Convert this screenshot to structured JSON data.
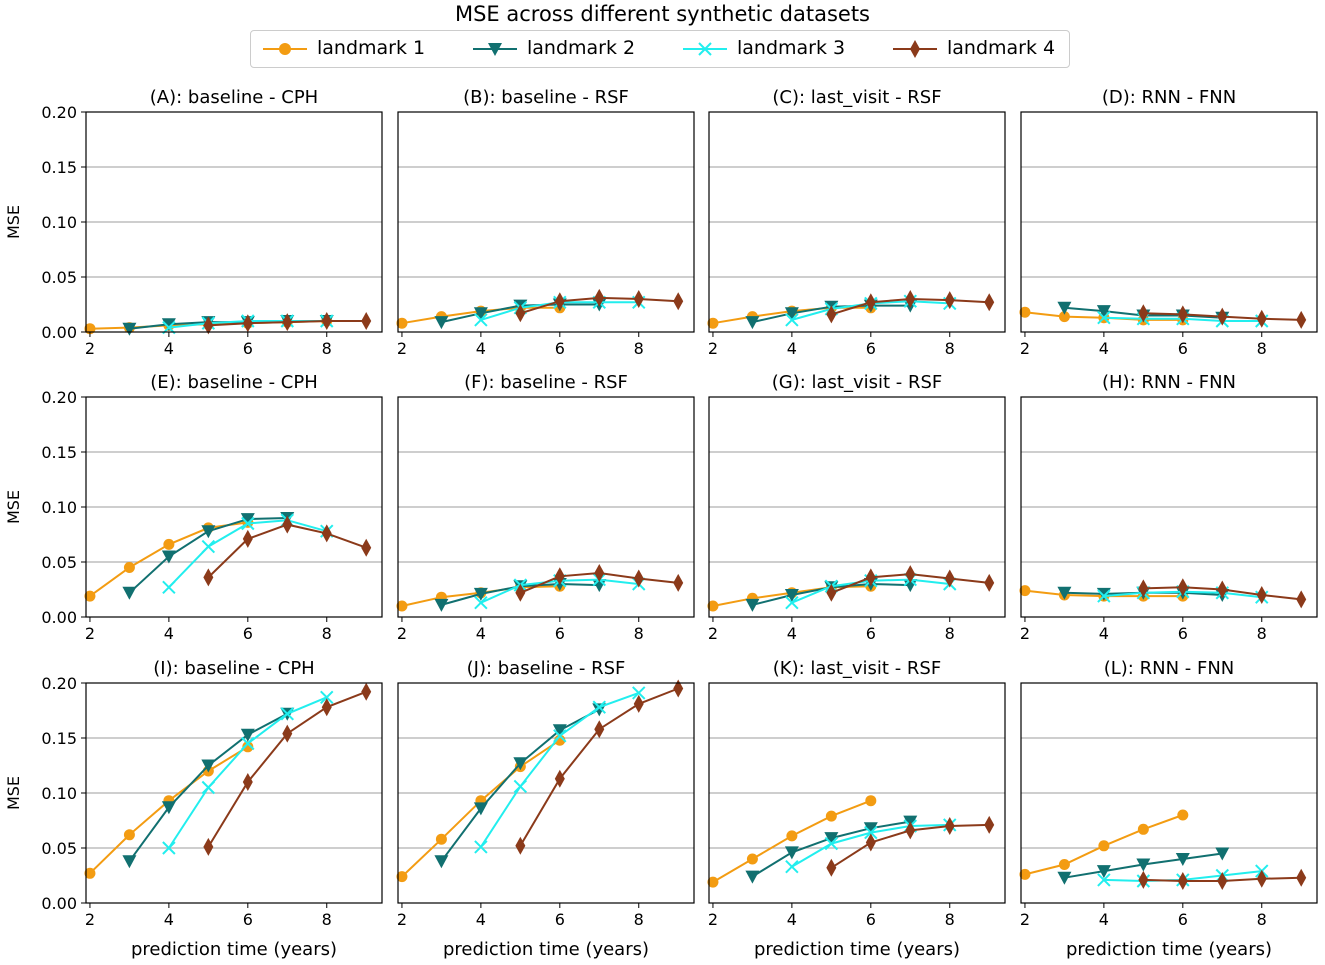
{
  "title": "MSE across different synthetic datasets",
  "legend": [
    {
      "label": "landmark 1",
      "color": "#f39c12",
      "marker": "circle"
    },
    {
      "label": "landmark 2",
      "color": "#117070",
      "marker": "triangle-down"
    },
    {
      "label": "landmark 3",
      "color": "#22eeee",
      "marker": "x"
    },
    {
      "label": "landmark 4",
      "color": "#8b3a1a",
      "marker": "diamond"
    }
  ],
  "chart_data": [
    {
      "type": "line",
      "title": "(A): baseline - CPH",
      "xlabel": "",
      "ylabel": "MSE",
      "xticks": [
        "2",
        "4",
        "6",
        "8"
      ],
      "yticks": [
        "0.00",
        "0.05",
        "0.10",
        "0.15",
        "0.20"
      ],
      "xlim": [
        1.9,
        9.4
      ],
      "ylim": [
        0,
        0.2
      ],
      "series": [
        {
          "name": "landmark 1",
          "x": [
            2,
            3,
            4,
            5,
            6,
            7,
            8
          ],
          "values": [
            0.003,
            0.004,
            0.006,
            0.007,
            0.008,
            0.009,
            0.01
          ]
        },
        {
          "name": "landmark 2",
          "x": [
            3,
            4,
            5,
            6,
            7,
            8
          ],
          "values": [
            0.003,
            0.007,
            0.009,
            0.009,
            0.01,
            0.01
          ]
        },
        {
          "name": "landmark 3",
          "x": [
            4,
            5,
            6,
            7,
            8
          ],
          "values": [
            0.004,
            0.008,
            0.01,
            0.01,
            0.01
          ]
        },
        {
          "name": "landmark 4",
          "x": [
            5,
            6,
            7,
            8,
            9
          ],
          "values": [
            0.006,
            0.008,
            0.009,
            0.01,
            0.01
          ]
        }
      ]
    },
    {
      "type": "line",
      "title": "(B): baseline - RSF",
      "xlabel": "",
      "ylabel": "",
      "xticks": [
        "2",
        "4",
        "6",
        "8"
      ],
      "yticks": [],
      "xlim": [
        1.9,
        9.4
      ],
      "ylim": [
        0,
        0.2
      ],
      "series": [
        {
          "name": "landmark 1",
          "x": [
            2,
            3,
            4,
            5,
            6
          ],
          "values": [
            0.008,
            0.014,
            0.019,
            0.022,
            0.022
          ]
        },
        {
          "name": "landmark 2",
          "x": [
            3,
            4,
            5,
            6,
            7
          ],
          "values": [
            0.009,
            0.017,
            0.024,
            0.025,
            0.025
          ]
        },
        {
          "name": "landmark 3",
          "x": [
            4,
            5,
            6,
            7,
            8
          ],
          "values": [
            0.011,
            0.022,
            0.027,
            0.027,
            0.027
          ]
        },
        {
          "name": "landmark 4",
          "x": [
            5,
            6,
            7,
            8,
            9
          ],
          "values": [
            0.017,
            0.028,
            0.031,
            0.03,
            0.028
          ]
        }
      ]
    },
    {
      "type": "line",
      "title": "(C): last_visit - RSF",
      "xlabel": "",
      "ylabel": "",
      "xticks": [
        "2",
        "4",
        "6",
        "8"
      ],
      "yticks": [],
      "xlim": [
        1.9,
        9.4
      ],
      "ylim": [
        0,
        0.2
      ],
      "series": [
        {
          "name": "landmark 1",
          "x": [
            2,
            3,
            4,
            5,
            6
          ],
          "values": [
            0.008,
            0.014,
            0.019,
            0.022,
            0.022
          ]
        },
        {
          "name": "landmark 2",
          "x": [
            3,
            4,
            5,
            6,
            7
          ],
          "values": [
            0.009,
            0.017,
            0.023,
            0.024,
            0.024
          ]
        },
        {
          "name": "landmark 3",
          "x": [
            4,
            5,
            6,
            7,
            8
          ],
          "values": [
            0.011,
            0.021,
            0.026,
            0.028,
            0.026
          ]
        },
        {
          "name": "landmark 4",
          "x": [
            5,
            6,
            7,
            8,
            9
          ],
          "values": [
            0.016,
            0.027,
            0.03,
            0.029,
            0.027
          ]
        }
      ]
    },
    {
      "type": "line",
      "title": "(D): RNN - FNN",
      "xlabel": "",
      "ylabel": "",
      "xticks": [
        "2",
        "4",
        "6",
        "8"
      ],
      "yticks": [],
      "xlim": [
        1.9,
        9.4
      ],
      "ylim": [
        0,
        0.2
      ],
      "series": [
        {
          "name": "landmark 1",
          "x": [
            2,
            3,
            4,
            5,
            6
          ],
          "values": [
            0.018,
            0.014,
            0.013,
            0.011,
            0.011
          ]
        },
        {
          "name": "landmark 2",
          "x": [
            3,
            4,
            5,
            6,
            7
          ],
          "values": [
            0.022,
            0.019,
            0.015,
            0.015,
            0.013
          ]
        },
        {
          "name": "landmark 3",
          "x": [
            4,
            5,
            6,
            7,
            8
          ],
          "values": [
            0.013,
            0.012,
            0.012,
            0.01,
            0.01
          ]
        },
        {
          "name": "landmark 4",
          "x": [
            5,
            6,
            7,
            8,
            9
          ],
          "values": [
            0.017,
            0.016,
            0.014,
            0.012,
            0.011
          ]
        }
      ]
    },
    {
      "type": "line",
      "title": "(E): baseline - CPH",
      "xlabel": "",
      "ylabel": "MSE",
      "xticks": [
        "2",
        "4",
        "6",
        "8"
      ],
      "yticks": [
        "0.00",
        "0.05",
        "0.10",
        "0.15",
        "0.20"
      ],
      "xlim": [
        1.9,
        9.4
      ],
      "ylim": [
        0,
        0.2
      ],
      "series": [
        {
          "name": "landmark 1",
          "x": [
            2,
            3,
            4,
            5,
            6
          ],
          "values": [
            0.019,
            0.045,
            0.066,
            0.081,
            0.086
          ]
        },
        {
          "name": "landmark 2",
          "x": [
            3,
            4,
            5,
            6,
            7
          ],
          "values": [
            0.022,
            0.055,
            0.078,
            0.089,
            0.09
          ]
        },
        {
          "name": "landmark 3",
          "x": [
            4,
            5,
            6,
            7,
            8
          ],
          "values": [
            0.027,
            0.064,
            0.085,
            0.088,
            0.078
          ]
        },
        {
          "name": "landmark 4",
          "x": [
            5,
            6,
            7,
            8,
            9
          ],
          "values": [
            0.036,
            0.071,
            0.084,
            0.076,
            0.063
          ]
        }
      ]
    },
    {
      "type": "line",
      "title": "(F): baseline - RSF",
      "xlabel": "",
      "ylabel": "",
      "xticks": [
        "2",
        "4",
        "6",
        "8"
      ],
      "yticks": [],
      "xlim": [
        1.9,
        9.4
      ],
      "ylim": [
        0,
        0.2
      ],
      "series": [
        {
          "name": "landmark 1",
          "x": [
            2,
            3,
            4,
            5,
            6
          ],
          "values": [
            0.01,
            0.018,
            0.022,
            0.027,
            0.028
          ]
        },
        {
          "name": "landmark 2",
          "x": [
            3,
            4,
            5,
            6,
            7
          ],
          "values": [
            0.011,
            0.021,
            0.028,
            0.03,
            0.029
          ]
        },
        {
          "name": "landmark 3",
          "x": [
            4,
            5,
            6,
            7,
            8
          ],
          "values": [
            0.013,
            0.029,
            0.033,
            0.034,
            0.03
          ]
        },
        {
          "name": "landmark 4",
          "x": [
            5,
            6,
            7,
            8,
            9
          ],
          "values": [
            0.022,
            0.037,
            0.04,
            0.035,
            0.031
          ]
        }
      ]
    },
    {
      "type": "line",
      "title": "(G): last_visit - RSF",
      "xlabel": "",
      "ylabel": "",
      "xticks": [
        "2",
        "4",
        "6",
        "8"
      ],
      "yticks": [],
      "xlim": [
        1.9,
        9.4
      ],
      "ylim": [
        0,
        0.2
      ],
      "series": [
        {
          "name": "landmark 1",
          "x": [
            2,
            3,
            4,
            5,
            6
          ],
          "values": [
            0.01,
            0.017,
            0.022,
            0.027,
            0.028
          ]
        },
        {
          "name": "landmark 2",
          "x": [
            3,
            4,
            5,
            6,
            7
          ],
          "values": [
            0.011,
            0.02,
            0.027,
            0.03,
            0.029
          ]
        },
        {
          "name": "landmark 3",
          "x": [
            4,
            5,
            6,
            7,
            8
          ],
          "values": [
            0.013,
            0.028,
            0.033,
            0.034,
            0.03
          ]
        },
        {
          "name": "landmark 4",
          "x": [
            5,
            6,
            7,
            8,
            9
          ],
          "values": [
            0.022,
            0.036,
            0.039,
            0.035,
            0.031
          ]
        }
      ]
    },
    {
      "type": "line",
      "title": "(H): RNN - FNN",
      "xlabel": "",
      "ylabel": "",
      "xticks": [
        "2",
        "4",
        "6",
        "8"
      ],
      "yticks": [],
      "xlim": [
        1.9,
        9.4
      ],
      "ylim": [
        0,
        0.2
      ],
      "series": [
        {
          "name": "landmark 1",
          "x": [
            2,
            3,
            4,
            5,
            6
          ],
          "values": [
            0.024,
            0.02,
            0.019,
            0.019,
            0.019
          ]
        },
        {
          "name": "landmark 2",
          "x": [
            3,
            4,
            5,
            6,
            7
          ],
          "values": [
            0.022,
            0.021,
            0.022,
            0.022,
            0.02
          ]
        },
        {
          "name": "landmark 3",
          "x": [
            4,
            5,
            6,
            7,
            8
          ],
          "values": [
            0.019,
            0.022,
            0.023,
            0.022,
            0.018
          ]
        },
        {
          "name": "landmark 4",
          "x": [
            5,
            6,
            7,
            8,
            9
          ],
          "values": [
            0.026,
            0.027,
            0.025,
            0.02,
            0.016
          ]
        }
      ]
    },
    {
      "type": "line",
      "title": "(I): baseline - CPH",
      "xlabel": "prediction time (years)",
      "ylabel": "MSE",
      "xticks": [
        "2",
        "4",
        "6",
        "8"
      ],
      "yticks": [
        "0.00",
        "0.05",
        "0.10",
        "0.15",
        "0.20"
      ],
      "xlim": [
        1.9,
        9.4
      ],
      "ylim": [
        0,
        0.2
      ],
      "series": [
        {
          "name": "landmark 1",
          "x": [
            2,
            3,
            4,
            5,
            6
          ],
          "values": [
            0.027,
            0.062,
            0.093,
            0.12,
            0.142
          ]
        },
        {
          "name": "landmark 2",
          "x": [
            3,
            4,
            5,
            6,
            7
          ],
          "values": [
            0.038,
            0.087,
            0.125,
            0.153,
            0.172
          ]
        },
        {
          "name": "landmark 3",
          "x": [
            4,
            5,
            6,
            7,
            8
          ],
          "values": [
            0.05,
            0.105,
            0.145,
            0.172,
            0.187
          ]
        },
        {
          "name": "landmark 4",
          "x": [
            5,
            6,
            7,
            8,
            9
          ],
          "values": [
            0.051,
            0.11,
            0.154,
            0.178,
            0.192
          ]
        }
      ]
    },
    {
      "type": "line",
      "title": "(J): baseline - RSF",
      "xlabel": "prediction time (years)",
      "ylabel": "",
      "xticks": [
        "2",
        "4",
        "6",
        "8"
      ],
      "yticks": [],
      "xlim": [
        1.9,
        9.4
      ],
      "ylim": [
        0,
        0.2
      ],
      "series": [
        {
          "name": "landmark 1",
          "x": [
            2,
            3,
            4,
            5,
            6
          ],
          "values": [
            0.024,
            0.058,
            0.093,
            0.124,
            0.148
          ]
        },
        {
          "name": "landmark 2",
          "x": [
            3,
            4,
            5,
            6,
            7
          ],
          "values": [
            0.038,
            0.086,
            0.127,
            0.157,
            0.176
          ]
        },
        {
          "name": "landmark 3",
          "x": [
            4,
            5,
            6,
            7,
            8
          ],
          "values": [
            0.051,
            0.106,
            0.152,
            0.178,
            0.191
          ]
        },
        {
          "name": "landmark 4",
          "x": [
            5,
            6,
            7,
            8,
            9
          ],
          "values": [
            0.052,
            0.113,
            0.158,
            0.181,
            0.195
          ]
        }
      ]
    },
    {
      "type": "line",
      "title": "(K): last_visit - RSF",
      "xlabel": "prediction time (years)",
      "ylabel": "",
      "xticks": [
        "2",
        "4",
        "6",
        "8"
      ],
      "yticks": [],
      "xlim": [
        1.9,
        9.4
      ],
      "ylim": [
        0,
        0.2
      ],
      "series": [
        {
          "name": "landmark 1",
          "x": [
            2,
            3,
            4,
            5,
            6
          ],
          "values": [
            0.019,
            0.04,
            0.061,
            0.079,
            0.093
          ]
        },
        {
          "name": "landmark 2",
          "x": [
            3,
            4,
            5,
            6,
            7
          ],
          "values": [
            0.024,
            0.046,
            0.059,
            0.068,
            0.074
          ]
        },
        {
          "name": "landmark 3",
          "x": [
            4,
            5,
            6,
            7,
            8
          ],
          "values": [
            0.033,
            0.054,
            0.064,
            0.07,
            0.071
          ]
        },
        {
          "name": "landmark 4",
          "x": [
            5,
            6,
            7,
            8,
            9
          ],
          "values": [
            0.032,
            0.055,
            0.066,
            0.07,
            0.071
          ]
        }
      ]
    },
    {
      "type": "line",
      "title": "(L): RNN - FNN",
      "xlabel": "prediction time (years)",
      "ylabel": "",
      "xticks": [
        "2",
        "4",
        "6",
        "8"
      ],
      "yticks": [],
      "xlim": [
        1.9,
        9.4
      ],
      "ylim": [
        0,
        0.2
      ],
      "series": [
        {
          "name": "landmark 1",
          "x": [
            2,
            3,
            4,
            5,
            6
          ],
          "values": [
            0.026,
            0.035,
            0.052,
            0.067,
            0.08
          ]
        },
        {
          "name": "landmark 2",
          "x": [
            3,
            4,
            5,
            6,
            7
          ],
          "values": [
            0.023,
            0.029,
            0.035,
            0.04,
            0.045
          ]
        },
        {
          "name": "landmark 3",
          "x": [
            4,
            5,
            6,
            7,
            8
          ],
          "values": [
            0.021,
            0.02,
            0.021,
            0.025,
            0.029
          ]
        },
        {
          "name": "landmark 4",
          "x": [
            5,
            6,
            7,
            8,
            9
          ],
          "values": [
            0.021,
            0.02,
            0.02,
            0.022,
            0.023
          ]
        }
      ]
    }
  ]
}
